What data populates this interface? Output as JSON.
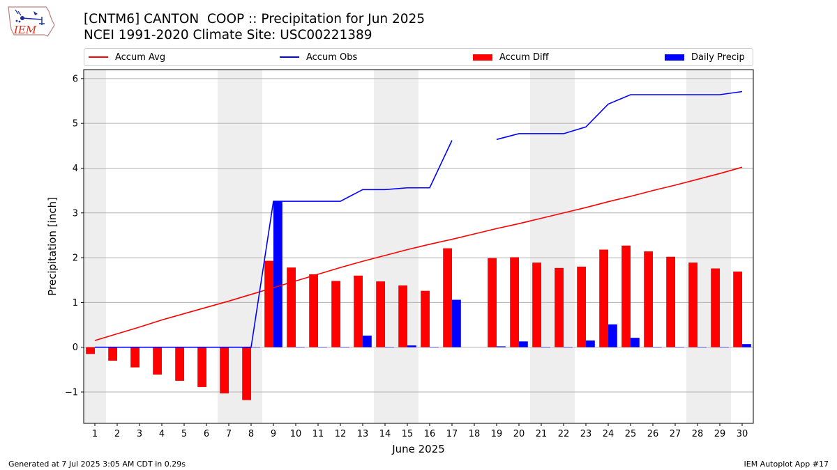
{
  "header": {
    "title_line1": "[CNTM6] CANTON  COOP :: Precipitation for Jun 2025",
    "title_line2": "NCEI 1991-2020 Climate Site: USC00221389",
    "logo_text": "IEM"
  },
  "footer": {
    "left": "Generated at 7 Jul 2025 3:05 AM CDT in 0.29s",
    "right": "IEM Autoplot App #17"
  },
  "colors": {
    "avg": "#ff0000",
    "obs": "#0000ff",
    "diff": "#ff0000",
    "daily": "#0000ff",
    "weekend": "#eeeeee",
    "grid": "#b0b0b0"
  },
  "legend": {
    "avg": "Accum Avg",
    "obs": "Accum Obs",
    "diff": "Accum Diff",
    "daily": "Daily Precip"
  },
  "chart_data": {
    "type": "bar",
    "title": "[CNTM6] CANTON  COOP :: Precipitation for Jun 2025",
    "xlabel": "June 2025",
    "ylabel": "Precipitation [inch]",
    "ylim": [
      -1.7,
      6.2
    ],
    "yticks": [
      -1,
      0,
      1,
      2,
      3,
      4,
      5,
      6
    ],
    "ytick_labels": [
      "−1",
      "0",
      "1",
      "2",
      "3",
      "4",
      "5",
      "6"
    ],
    "categories": [
      "1",
      "2",
      "3",
      "4",
      "5",
      "6",
      "7",
      "8",
      "9",
      "10",
      "11",
      "12",
      "13",
      "14",
      "15",
      "16",
      "17",
      "18",
      "19",
      "20",
      "21",
      "22",
      "23",
      "24",
      "25",
      "26",
      "27",
      "28",
      "29",
      "30"
    ],
    "weekend_days": [
      1,
      7,
      8,
      14,
      15,
      21,
      22,
      28,
      29
    ],
    "series": [
      {
        "name": "Accum Avg",
        "kind": "line",
        "values": [
          0.15,
          0.3,
          0.45,
          0.61,
          0.75,
          0.89,
          1.03,
          1.18,
          1.33,
          1.48,
          1.63,
          1.78,
          1.92,
          2.05,
          2.18,
          2.3,
          2.41,
          2.53,
          2.65,
          2.76,
          2.88,
          3.0,
          3.12,
          3.25,
          3.37,
          3.5,
          3.62,
          3.75,
          3.88,
          4.02
        ]
      },
      {
        "name": "Accum Obs",
        "kind": "line",
        "values": [
          0,
          0,
          0,
          0,
          0,
          0,
          0,
          0,
          3.26,
          3.26,
          3.26,
          3.26,
          3.52,
          3.52,
          3.56,
          3.56,
          4.62,
          null,
          4.64,
          4.77,
          4.77,
          4.77,
          4.92,
          5.43,
          5.64,
          5.64,
          5.64,
          5.64,
          5.64,
          5.71
        ]
      },
      {
        "name": "Accum Diff",
        "kind": "bar",
        "values": [
          -0.15,
          -0.3,
          -0.45,
          -0.61,
          -0.75,
          -0.89,
          -1.03,
          -1.18,
          1.93,
          1.78,
          1.63,
          1.48,
          1.6,
          1.47,
          1.38,
          1.26,
          2.21,
          null,
          1.99,
          2.01,
          1.89,
          1.77,
          1.8,
          2.18,
          2.27,
          2.14,
          2.02,
          1.89,
          1.76,
          1.69
        ]
      },
      {
        "name": "Daily Precip",
        "kind": "bar",
        "values": [
          0,
          0,
          0,
          0,
          0,
          0,
          0,
          0,
          3.26,
          0,
          0,
          0,
          0.26,
          0,
          0.04,
          0,
          1.06,
          null,
          0.02,
          0.13,
          0,
          0,
          0.15,
          0.51,
          0.21,
          0,
          0,
          0,
          0,
          0.07
        ]
      }
    ]
  }
}
